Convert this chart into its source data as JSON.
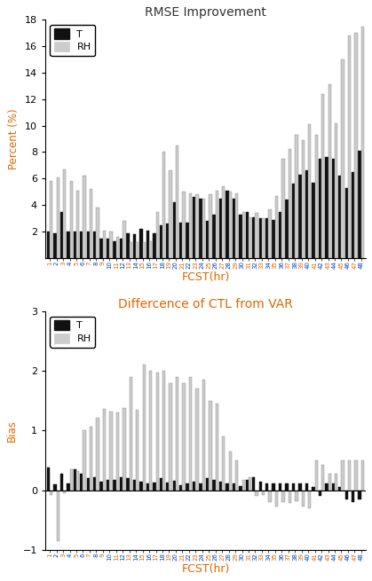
{
  "title1": "RMSE Improvement",
  "title2": "Differcence of CTL from VAR",
  "ylabel1": "Percent (%)",
  "ylabel2": "Bias",
  "xlabel": "FCST(hr)",
  "ylim1": [
    0,
    18
  ],
  "ylim2": [
    -1,
    3
  ],
  "yticks1": [
    2,
    4,
    6,
    8,
    10,
    12,
    14,
    16,
    18
  ],
  "yticks2": [
    -1,
    0,
    1,
    2,
    3
  ],
  "color_T": "#111111",
  "color_RH": "#cccccc",
  "title1_color": "#333333",
  "title2_color": "#dd6600",
  "xlabel_color": "#dd6600",
  "ylabel_color": "#dd6600",
  "hours": [
    1,
    2,
    3,
    4,
    5,
    6,
    7,
    8,
    9,
    10,
    11,
    12,
    13,
    14,
    15,
    16,
    17,
    18,
    19,
    20,
    21,
    22,
    23,
    24,
    25,
    26,
    27,
    28,
    29,
    30,
    31,
    32,
    33,
    34,
    35,
    36,
    37,
    38,
    39,
    40,
    41,
    42,
    43,
    44,
    45,
    46,
    47,
    48
  ],
  "rmse_T": [
    2.0,
    1.9,
    3.5,
    2.0,
    2.0,
    2.0,
    2.0,
    2.0,
    1.5,
    1.5,
    1.3,
    1.5,
    1.9,
    1.8,
    2.2,
    2.1,
    1.9,
    2.5,
    2.6,
    4.2,
    2.7,
    2.7,
    4.6,
    4.5,
    2.8,
    3.3,
    4.5,
    5.1,
    4.5,
    3.3,
    3.5,
    3.1,
    3.0,
    3.0,
    2.9,
    3.5,
    4.4,
    5.6,
    6.3,
    6.6,
    5.7,
    7.5,
    7.6,
    7.5,
    6.2,
    5.3,
    6.5,
    8.1
  ],
  "rmse_RH": [
    5.8,
    6.1,
    6.7,
    5.8,
    5.1,
    6.2,
    5.2,
    3.8,
    2.1,
    2.0,
    1.6,
    2.8,
    1.2,
    1.2,
    1.2,
    1.3,
    3.5,
    8.0,
    6.6,
    8.5,
    5.0,
    4.9,
    4.8,
    4.5,
    4.8,
    5.1,
    5.4,
    5.0,
    4.9,
    3.5,
    3.1,
    3.4,
    3.0,
    3.7,
    4.7,
    7.5,
    8.2,
    9.3,
    8.9,
    10.1,
    9.3,
    12.4,
    13.1,
    10.2,
    15.0,
    16.8,
    17.0,
    17.5
  ],
  "bias_T": [
    0.38,
    0.1,
    0.28,
    0.12,
    0.35,
    0.28,
    0.2,
    0.22,
    0.15,
    0.18,
    0.17,
    0.22,
    0.2,
    0.18,
    0.15,
    0.12,
    0.13,
    0.2,
    0.13,
    0.16,
    0.08,
    0.12,
    0.15,
    0.12,
    0.2,
    0.18,
    0.15,
    0.12,
    0.12,
    0.07,
    0.18,
    0.22,
    0.15,
    0.12,
    0.12,
    0.12,
    0.12,
    0.12,
    0.12,
    0.12,
    0.05,
    -0.1,
    0.12,
    0.12,
    0.05,
    -0.15,
    -0.2,
    -0.15
  ],
  "bias_RH": [
    -0.08,
    -0.85,
    -0.05,
    0.35,
    0.32,
    1.0,
    1.06,
    1.22,
    1.37,
    1.32,
    1.3,
    1.38,
    1.9,
    1.35,
    2.1,
    2.0,
    1.98,
    2.0,
    1.8,
    1.9,
    1.8,
    1.9,
    1.7,
    1.85,
    1.5,
    1.45,
    0.9,
    0.65,
    0.5,
    0.18,
    0.22,
    -0.1,
    -0.08,
    -0.2,
    -0.28,
    -0.2,
    -0.22,
    -0.18,
    -0.28,
    -0.3,
    0.5,
    0.42,
    0.28,
    0.28,
    0.5,
    0.5,
    0.5,
    0.5
  ]
}
